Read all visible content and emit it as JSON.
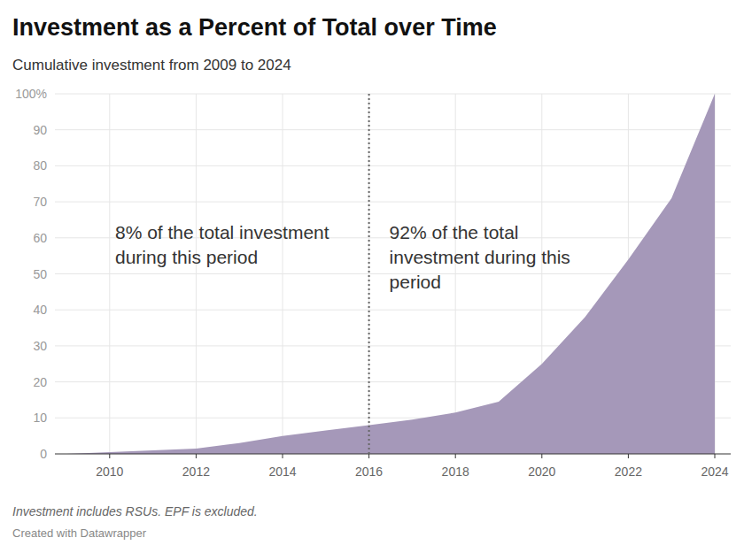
{
  "chart_data": {
    "type": "area",
    "title": "Investment as a Percent of Total over Time",
    "subtitle": "Cumulative investment from 2009 to 2024",
    "x": [
      2009,
      2010,
      2011,
      2012,
      2013,
      2014,
      2015,
      2016,
      2017,
      2018,
      2019,
      2020,
      2021,
      2022,
      2023,
      2024
    ],
    "values": [
      0,
      0.5,
      1,
      1.5,
      3,
      5,
      6.5,
      8,
      9.5,
      11.5,
      14.5,
      25,
      38,
      54,
      71,
      100
    ],
    "color": "#a598b9",
    "xlim": [
      2009,
      2024
    ],
    "xticks": [
      2010,
      2012,
      2014,
      2016,
      2018,
      2020,
      2022,
      2024
    ],
    "ylim": [
      0,
      100
    ],
    "yticks": [
      0,
      10,
      20,
      30,
      40,
      50,
      60,
      70,
      80,
      90,
      {
        "value": 100,
        "label": "100%"
      }
    ],
    "grid": true,
    "vline": 2016,
    "annotations": [
      "8% of the total investment during this period",
      "92% of the total investment during this period"
    ],
    "note": "Investment includes RSUs. EPF is excluded.",
    "credit": "Created with Datawrapper"
  }
}
